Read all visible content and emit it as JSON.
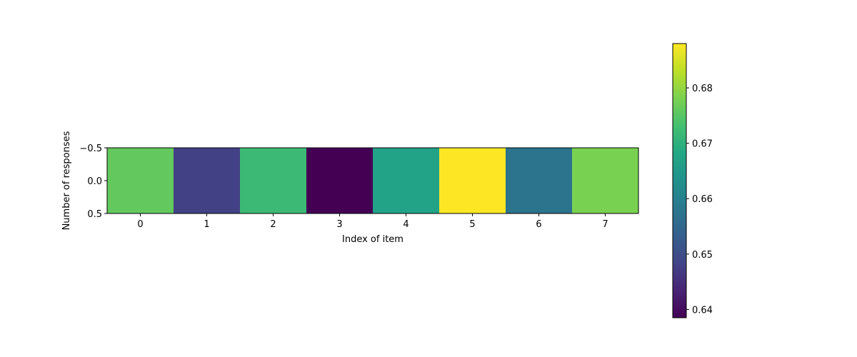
{
  "chart_data": {
    "type": "heatmap",
    "title": "",
    "xlabel": "Index of item",
    "ylabel": "Number of responses",
    "x_categories": [
      0,
      1,
      2,
      3,
      4,
      5,
      6,
      7
    ],
    "y_ticks": [
      "−0.5",
      "0.0",
      "0.5"
    ],
    "xlim": [
      -0.5,
      7.5
    ],
    "ylim": [
      -0.5,
      0.5
    ],
    "values": [
      [
        0.676,
        0.648,
        0.672,
        0.6385,
        0.667,
        0.688,
        0.6575,
        0.678
      ]
    ],
    "colormap": "viridis",
    "colorbar": {
      "range": [
        0.6385,
        0.688
      ],
      "ticks": [
        0.64,
        0.65,
        0.66,
        0.67,
        0.68
      ],
      "tick_labels": [
        "0.64",
        "0.65",
        "0.66",
        "0.67",
        "0.68"
      ]
    },
    "grid": false,
    "legend": "none"
  }
}
